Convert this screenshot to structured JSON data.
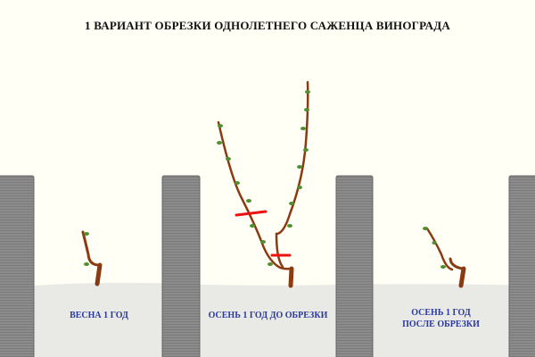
{
  "title": "1 ВАРИАНТ ОБРЕЗКИ ОДНОЛЕТНЕГО САЖЕНЦА ВИНОГРАДА",
  "stages": [
    {
      "label": "ВЕСНА 1 ГОД"
    },
    {
      "label": "ОСЕНЬ 1 ГОД ДО ОБРЕЗКИ"
    },
    {
      "label_line1": "ОСЕНЬ 1 ГОД",
      "label_line2": "ПОСЛЕ ОБРЕЗКИ"
    }
  ],
  "colors": {
    "background": "#fffff6",
    "post": "#8a8a8a",
    "ground": "#e9e9e5",
    "vine": "#8b3a12",
    "leaf": "#4f8f2e",
    "cut_mark": "#ee1111",
    "label": "#2b3a9e"
  }
}
